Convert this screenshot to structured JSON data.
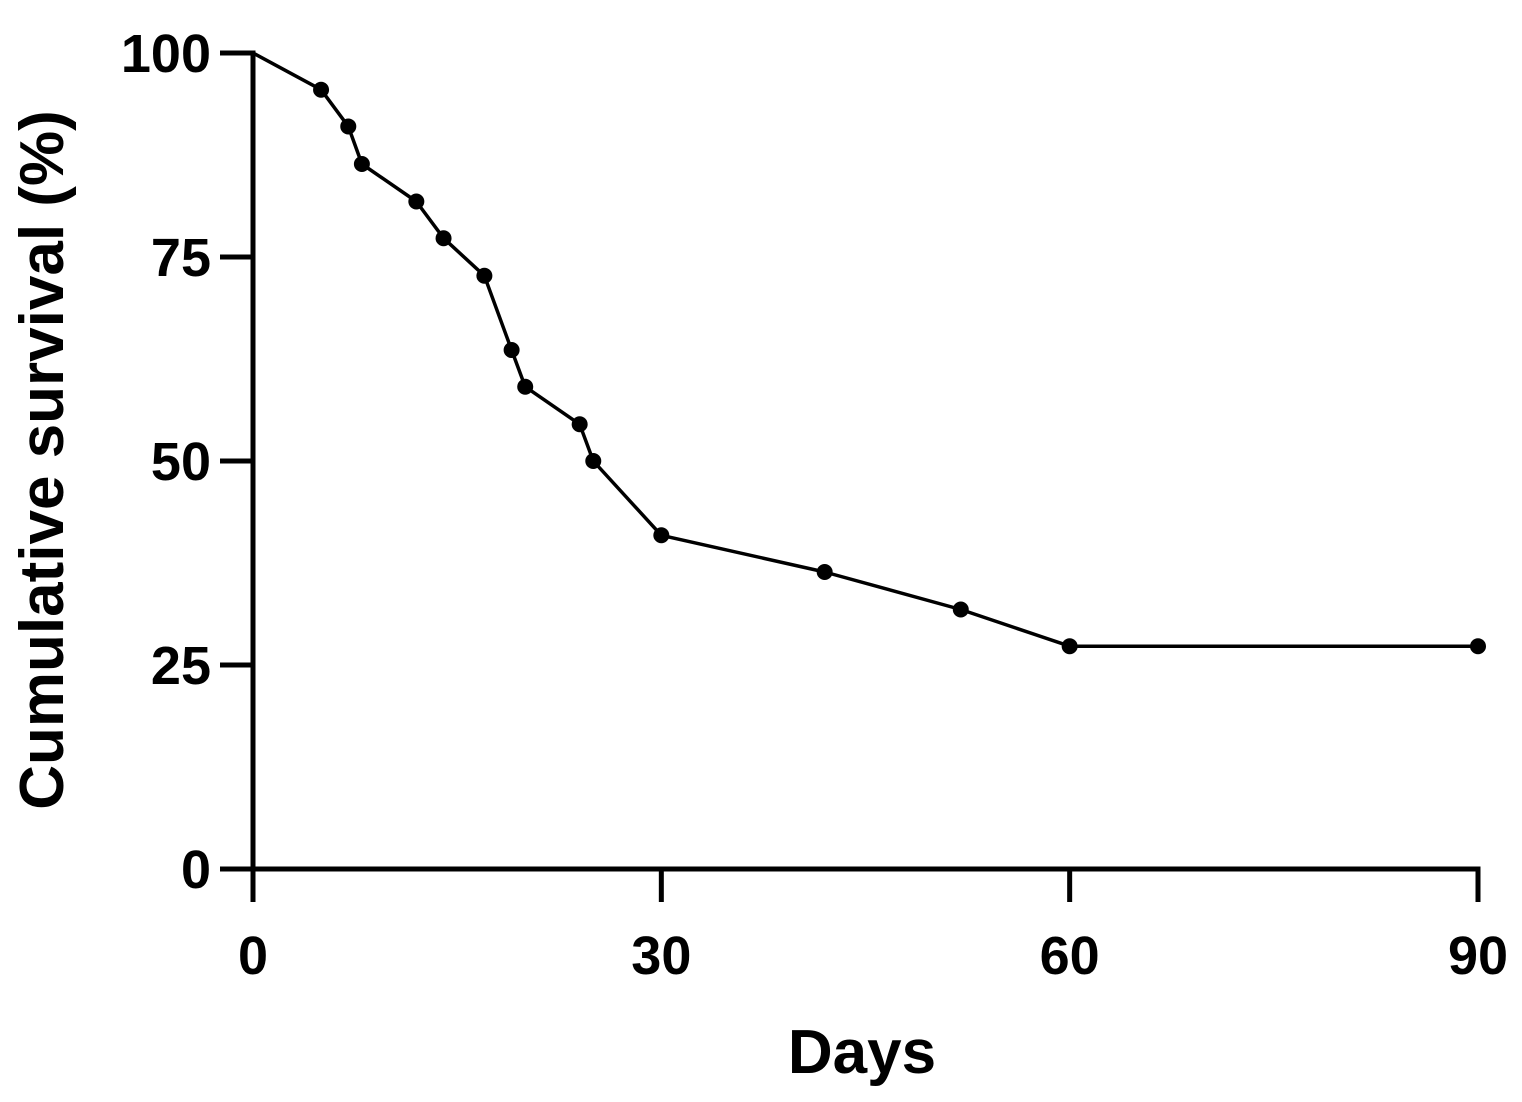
{
  "chart_data": {
    "type": "line",
    "title": "",
    "xlabel": "Days",
    "ylabel": "Cumulative survival (%)",
    "xlim": [
      0,
      90
    ],
    "ylim": [
      0,
      100
    ],
    "xticks": [
      0,
      30,
      60,
      90
    ],
    "yticks": [
      0,
      25,
      50,
      75,
      100
    ],
    "grid": false,
    "legend": "none",
    "series": [
      {
        "color": "#000000",
        "x": [
          0,
          5,
          7,
          8,
          12,
          14,
          17,
          19,
          20,
          24,
          25,
          30,
          42,
          52,
          60,
          90
        ],
        "y": [
          100,
          95.5,
          91,
          86.4,
          81.8,
          77.3,
          72.7,
          63.6,
          59.1,
          54.5,
          50,
          40.9,
          36.4,
          31.8,
          27.3,
          27.3
        ]
      }
    ]
  }
}
